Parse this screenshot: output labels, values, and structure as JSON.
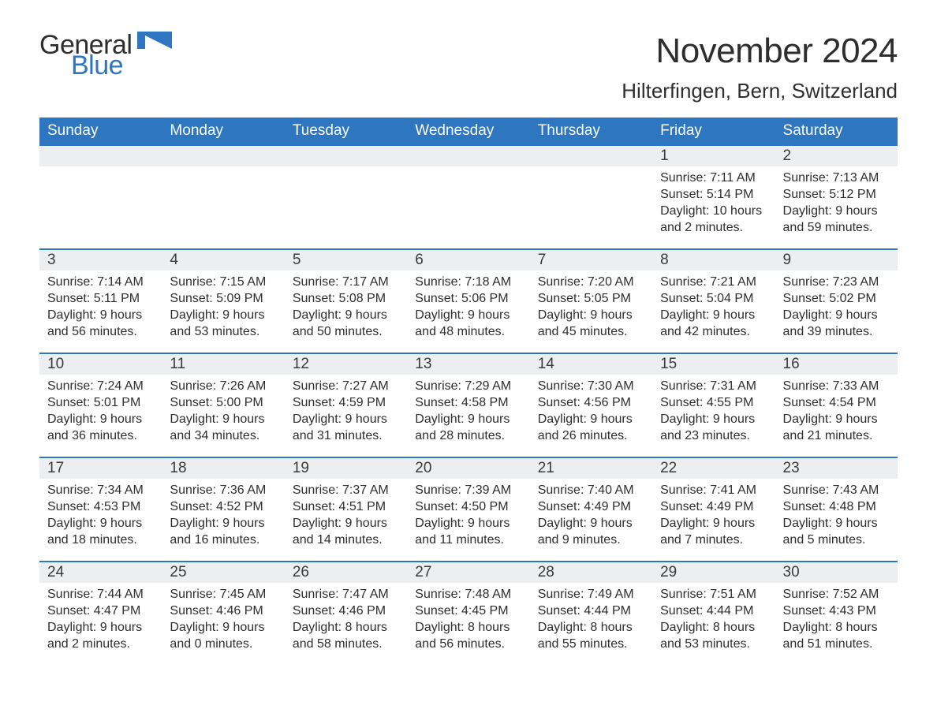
{
  "brand": {
    "text1": "General",
    "text2": "Blue",
    "brand_color": "#2f76c1"
  },
  "title": {
    "month": "November 2024",
    "location": "Hilterfingen, Bern, Switzerland"
  },
  "colors": {
    "header_bg": "#2f76c1",
    "header_text": "#ffffff",
    "daynum_bg": "#eceeef",
    "border": "#2f76c1",
    "text": "#2e2e2e",
    "background": "#ffffff"
  },
  "dow": [
    "Sunday",
    "Monday",
    "Tuesday",
    "Wednesday",
    "Thursday",
    "Friday",
    "Saturday"
  ],
  "labels": {
    "sunrise": "Sunrise: ",
    "sunset": "Sunset: ",
    "daylight_prefix": "Daylight: "
  },
  "weeks": [
    [
      {
        "blank": true
      },
      {
        "blank": true
      },
      {
        "blank": true
      },
      {
        "blank": true
      },
      {
        "blank": true
      },
      {
        "n": "1",
        "sr": "7:11 AM",
        "ss": "5:14 PM",
        "dl": "10 hours and 2 minutes."
      },
      {
        "n": "2",
        "sr": "7:13 AM",
        "ss": "5:12 PM",
        "dl": "9 hours and 59 minutes."
      }
    ],
    [
      {
        "n": "3",
        "sr": "7:14 AM",
        "ss": "5:11 PM",
        "dl": "9 hours and 56 minutes."
      },
      {
        "n": "4",
        "sr": "7:15 AM",
        "ss": "5:09 PM",
        "dl": "9 hours and 53 minutes."
      },
      {
        "n": "5",
        "sr": "7:17 AM",
        "ss": "5:08 PM",
        "dl": "9 hours and 50 minutes."
      },
      {
        "n": "6",
        "sr": "7:18 AM",
        "ss": "5:06 PM",
        "dl": "9 hours and 48 minutes."
      },
      {
        "n": "7",
        "sr": "7:20 AM",
        "ss": "5:05 PM",
        "dl": "9 hours and 45 minutes."
      },
      {
        "n": "8",
        "sr": "7:21 AM",
        "ss": "5:04 PM",
        "dl": "9 hours and 42 minutes."
      },
      {
        "n": "9",
        "sr": "7:23 AM",
        "ss": "5:02 PM",
        "dl": "9 hours and 39 minutes."
      }
    ],
    [
      {
        "n": "10",
        "sr": "7:24 AM",
        "ss": "5:01 PM",
        "dl": "9 hours and 36 minutes."
      },
      {
        "n": "11",
        "sr": "7:26 AM",
        "ss": "5:00 PM",
        "dl": "9 hours and 34 minutes."
      },
      {
        "n": "12",
        "sr": "7:27 AM",
        "ss": "4:59 PM",
        "dl": "9 hours and 31 minutes."
      },
      {
        "n": "13",
        "sr": "7:29 AM",
        "ss": "4:58 PM",
        "dl": "9 hours and 28 minutes."
      },
      {
        "n": "14",
        "sr": "7:30 AM",
        "ss": "4:56 PM",
        "dl": "9 hours and 26 minutes."
      },
      {
        "n": "15",
        "sr": "7:31 AM",
        "ss": "4:55 PM",
        "dl": "9 hours and 23 minutes."
      },
      {
        "n": "16",
        "sr": "7:33 AM",
        "ss": "4:54 PM",
        "dl": "9 hours and 21 minutes."
      }
    ],
    [
      {
        "n": "17",
        "sr": "7:34 AM",
        "ss": "4:53 PM",
        "dl": "9 hours and 18 minutes."
      },
      {
        "n": "18",
        "sr": "7:36 AM",
        "ss": "4:52 PM",
        "dl": "9 hours and 16 minutes."
      },
      {
        "n": "19",
        "sr": "7:37 AM",
        "ss": "4:51 PM",
        "dl": "9 hours and 14 minutes."
      },
      {
        "n": "20",
        "sr": "7:39 AM",
        "ss": "4:50 PM",
        "dl": "9 hours and 11 minutes."
      },
      {
        "n": "21",
        "sr": "7:40 AM",
        "ss": "4:49 PM",
        "dl": "9 hours and 9 minutes."
      },
      {
        "n": "22",
        "sr": "7:41 AM",
        "ss": "4:49 PM",
        "dl": "9 hours and 7 minutes."
      },
      {
        "n": "23",
        "sr": "7:43 AM",
        "ss": "4:48 PM",
        "dl": "9 hours and 5 minutes."
      }
    ],
    [
      {
        "n": "24",
        "sr": "7:44 AM",
        "ss": "4:47 PM",
        "dl": "9 hours and 2 minutes."
      },
      {
        "n": "25",
        "sr": "7:45 AM",
        "ss": "4:46 PM",
        "dl": "9 hours and 0 minutes."
      },
      {
        "n": "26",
        "sr": "7:47 AM",
        "ss": "4:46 PM",
        "dl": "8 hours and 58 minutes."
      },
      {
        "n": "27",
        "sr": "7:48 AM",
        "ss": "4:45 PM",
        "dl": "8 hours and 56 minutes."
      },
      {
        "n": "28",
        "sr": "7:49 AM",
        "ss": "4:44 PM",
        "dl": "8 hours and 55 minutes."
      },
      {
        "n": "29",
        "sr": "7:51 AM",
        "ss": "4:44 PM",
        "dl": "8 hours and 53 minutes."
      },
      {
        "n": "30",
        "sr": "7:52 AM",
        "ss": "4:43 PM",
        "dl": "8 hours and 51 minutes."
      }
    ]
  ]
}
